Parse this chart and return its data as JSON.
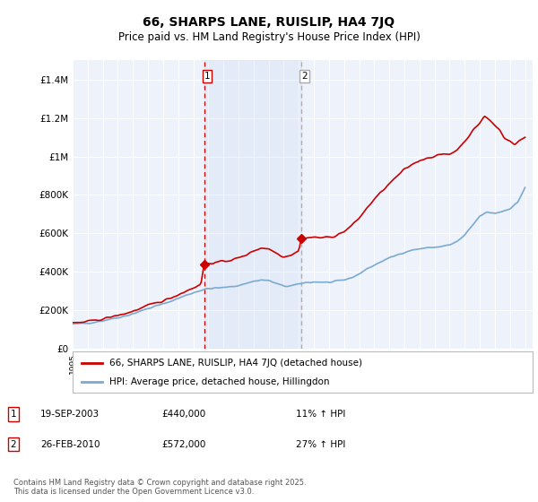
{
  "title": "66, SHARPS LANE, RUISLIP, HA4 7JQ",
  "subtitle": "Price paid vs. HM Land Registry's House Price Index (HPI)",
  "footer": "Contains HM Land Registry data © Crown copyright and database right 2025.\nThis data is licensed under the Open Government Licence v3.0.",
  "legend_label_red": "66, SHARPS LANE, RUISLIP, HA4 7JQ (detached house)",
  "legend_label_blue": "HPI: Average price, detached house, Hillingdon",
  "annotation1_date": "19-SEP-2003",
  "annotation1_price": "£440,000",
  "annotation1_hpi": "11% ↑ HPI",
  "annotation2_date": "26-FEB-2010",
  "annotation2_price": "£572,000",
  "annotation2_hpi": "27% ↑ HPI",
  "ylim": [
    0,
    1500000
  ],
  "yticks": [
    0,
    200000,
    400000,
    600000,
    800000,
    1000000,
    1200000,
    1400000
  ],
  "ytick_labels": [
    "£0",
    "£200K",
    "£400K",
    "£600K",
    "£800K",
    "£1M",
    "£1.2M",
    "£1.4M"
  ],
  "background_color": "#ffffff",
  "plot_bg_color": "#eef2fb",
  "grid_color": "#ffffff",
  "red_color": "#cc0000",
  "blue_color": "#7aaad0",
  "marker1_x": 2003.72,
  "marker1_y": 440000,
  "marker2_x": 2010.15,
  "marker2_y": 572000,
  "vline1_x": 2003.72,
  "vline2_x": 2010.15,
  "xlim_left": 1995.0,
  "xlim_right": 2025.5
}
